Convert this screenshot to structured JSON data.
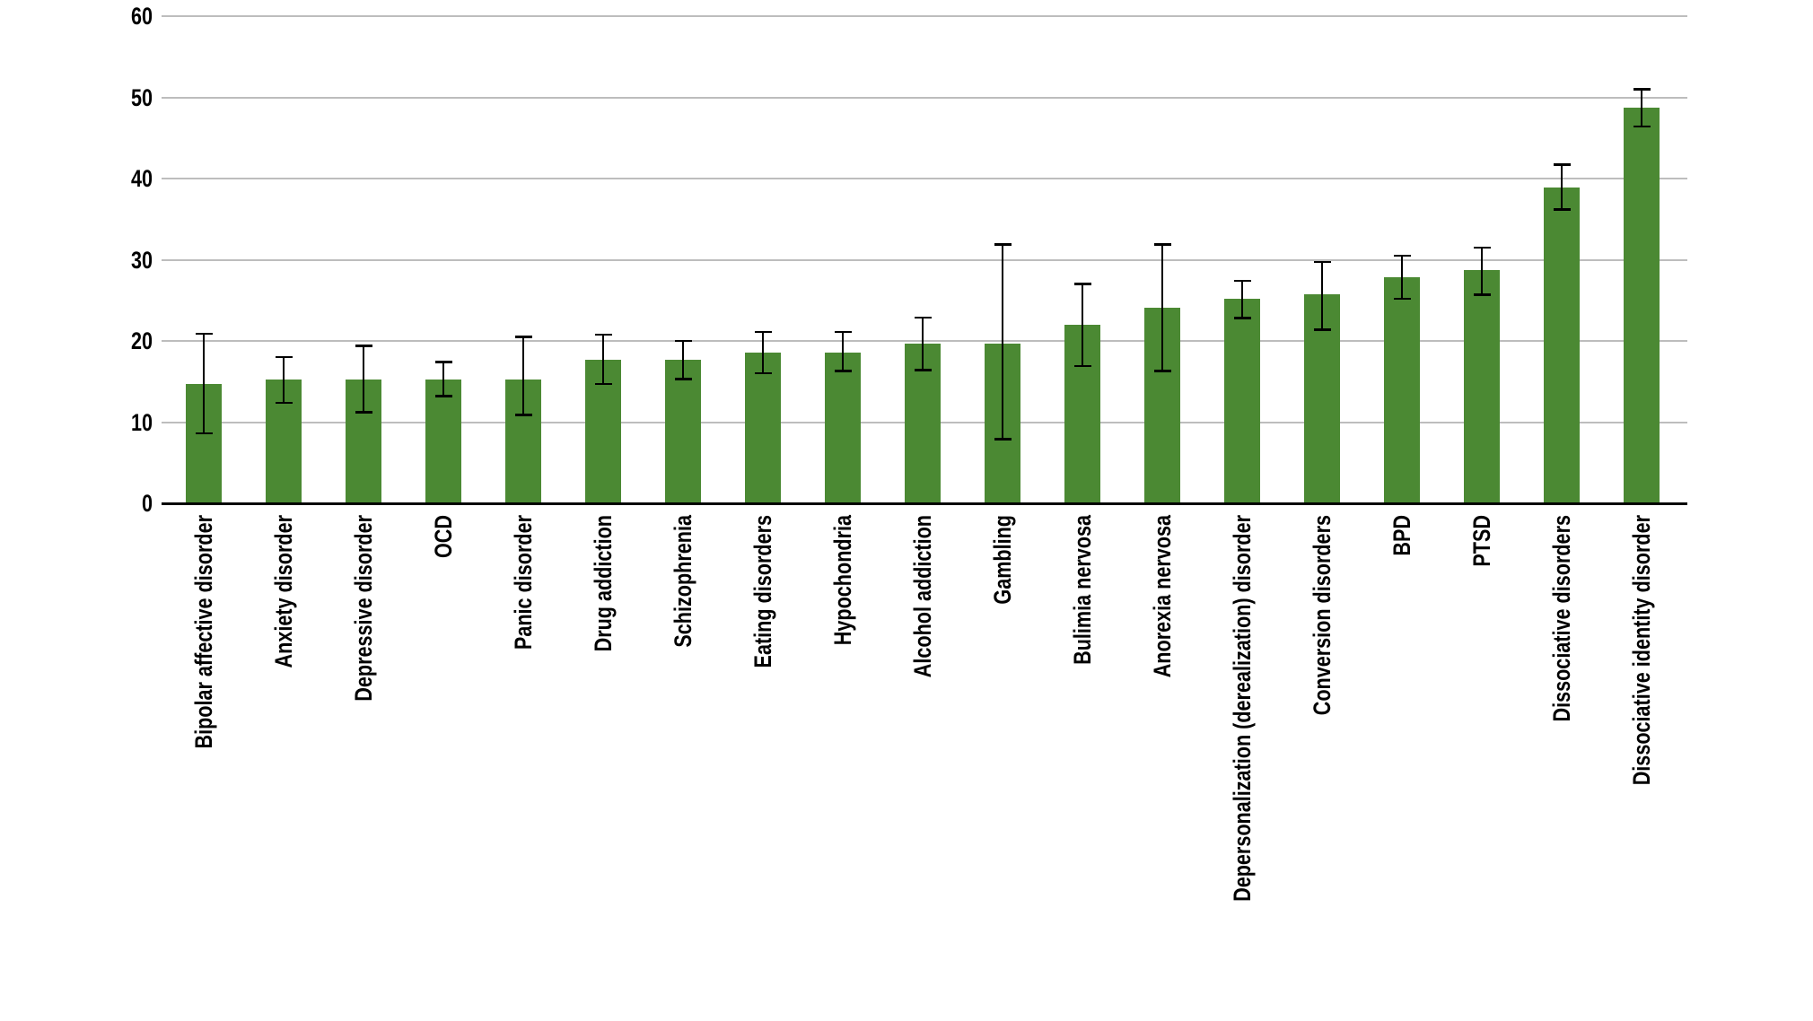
{
  "figure": {
    "background_color": "#ffffff"
  },
  "chart_data": {
    "type": "bar",
    "title": "",
    "xlabel": "",
    "ylabel": "",
    "legend": "none",
    "grid": "horizontal gridlines at every y tick",
    "ylim": [
      0,
      60
    ],
    "yticks": [
      0,
      10,
      20,
      30,
      40,
      50,
      60
    ],
    "bar_color": "#4b8933",
    "gridline_color": "#bdbdbd",
    "axis_line_color": "#000000",
    "error_bar_color": "#000000",
    "text_color": "#000000",
    "categories": [
      "Bipolar affective disorder",
      "Anxiety disorder",
      "Depressive disorder",
      "OCD",
      "Panic disorder",
      "Drug addiction",
      "Schizophrenia",
      "Eating disorders",
      "Hypochondria",
      "Alcohol addiction",
      "Gambling",
      "Bulimia nervosa",
      "Anorexia nervosa",
      "Depersonalization (derealization) disorder",
      "Conversion disorders",
      "BPD",
      "PTSD",
      "Dissociative disorders",
      "Dissociative identity disorder"
    ],
    "values": [
      14.7,
      15.3,
      15.3,
      15.3,
      15.3,
      17.7,
      17.7,
      18.6,
      18.6,
      19.7,
      19.7,
      22.0,
      24.1,
      25.2,
      25.7,
      27.9,
      28.7,
      38.9,
      48.7
    ],
    "error_low": [
      8.6,
      12.4,
      11.2,
      13.2,
      10.9,
      14.7,
      15.3,
      16.0,
      16.3,
      16.4,
      7.9,
      16.9,
      16.3,
      22.8,
      21.4,
      25.2,
      25.7,
      36.2,
      46.4
    ],
    "error_high": [
      20.9,
      18.0,
      19.4,
      17.4,
      20.5,
      20.8,
      20.0,
      21.1,
      21.1,
      22.9,
      31.9,
      27.0,
      31.9,
      27.4,
      29.7,
      30.5,
      31.5,
      41.7,
      51.0
    ]
  }
}
